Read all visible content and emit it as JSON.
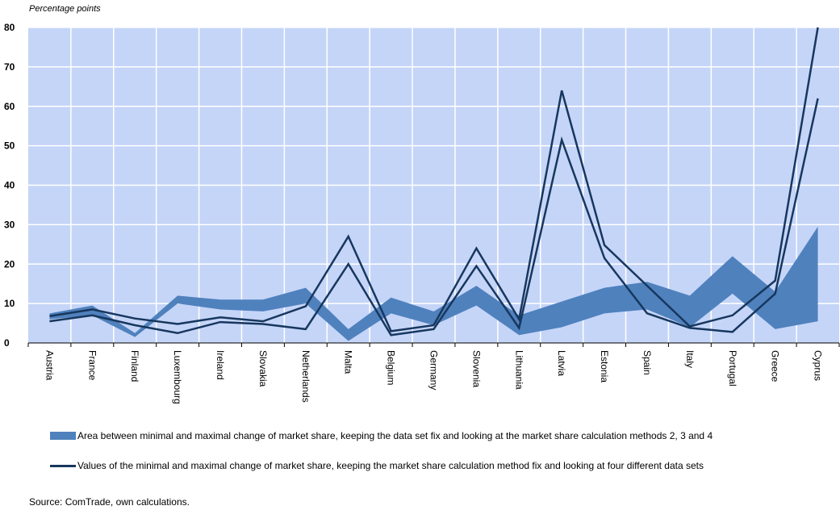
{
  "chart_data": {
    "type": "area",
    "ylabel": "Percentage points",
    "ylim": [
      0,
      80
    ],
    "yticks": [
      0,
      10,
      20,
      30,
      40,
      50,
      60,
      70,
      80
    ],
    "grid": true,
    "categories": [
      "Austria",
      "France",
      "Finland",
      "Luxembourg",
      "Ireland",
      "Slovakia",
      "Netherlands",
      "Malta",
      "Belgium",
      "Germany",
      "Slovenia",
      "Lithuania",
      "Latvia",
      "Estonia",
      "Spain",
      "Italy",
      "Portugal",
      "Greece",
      "Cyprus"
    ],
    "series": [
      {
        "name": "Area between minimal and maximal change of market share, keeping the data set fix and looking at the market share calculation methods 2, 3 and 4",
        "kind": "band",
        "color": "#4f81bd",
        "lower": [
          6.0,
          7.0,
          1.5,
          10.0,
          8.5,
          8.0,
          10.0,
          0.5,
          7.5,
          4.5,
          9.5,
          2.0,
          4.0,
          7.5,
          8.5,
          4.0,
          12.5,
          3.5,
          5.5
        ],
        "upper": [
          7.5,
          9.5,
          2.5,
          12.0,
          11.0,
          11.0,
          14.0,
          3.5,
          11.5,
          8.0,
          14.5,
          7.0,
          10.5,
          14.0,
          15.5,
          12.0,
          22.0,
          13.0,
          29.5
        ]
      },
      {
        "name": "Values of the minimal and maximal change of market share, keeping the market share calculation method fix and looking at four different data sets",
        "kind": "lines",
        "color": "#17375e",
        "min": [
          5.5,
          7.0,
          4.5,
          2.5,
          5.3,
          4.8,
          3.5,
          20.0,
          2.0,
          3.5,
          19.5,
          3.8,
          51.5,
          21.5,
          7.5,
          3.8,
          2.8,
          12.5,
          62.0
        ],
        "max": [
          6.8,
          8.5,
          6.2,
          4.8,
          6.5,
          5.5,
          9.3,
          27.0,
          3.0,
          4.5,
          24.0,
          6.0,
          64.0,
          24.8,
          14.5,
          4.2,
          7.0,
          15.8,
          80.0
        ]
      }
    ],
    "legend_position": "bottom"
  },
  "footer": {
    "source": "Source: ComTrade, own calculations."
  }
}
